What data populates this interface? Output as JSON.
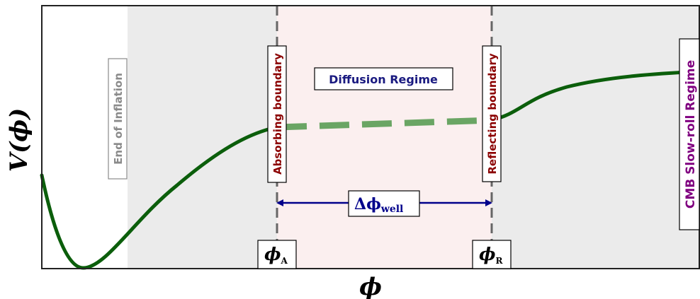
{
  "axes": {
    "ylabel": "V(ϕ)",
    "xlabel": "ϕ"
  },
  "labels": {
    "end_of_inflation": "End of Inflation",
    "absorbing_boundary": "Absorbing boundary",
    "reflecting_boundary": "Reflecting boundary",
    "diffusion_regime": "Diffusion Regime",
    "cmb_regime": "CMB Slow-roll Regime",
    "delta_phi": "Δϕ",
    "delta_phi_sub": "well",
    "phi_a": "ϕ",
    "phi_a_sub": "A",
    "phi_r": "ϕ",
    "phi_r_sub": "R"
  },
  "colors": {
    "potential_curve": "#0b5e0b",
    "diffusion_plateau": "#6aa564",
    "gray_region": "#ebebeb",
    "diffusion_region": "#fbefef",
    "boundary_label": "#8b0000",
    "regime_label": "#1a1a80",
    "cmb_label": "#800080",
    "end_label": "#8a8a8a",
    "arrow": "#00008b",
    "dashed_line": "#666666"
  }
}
